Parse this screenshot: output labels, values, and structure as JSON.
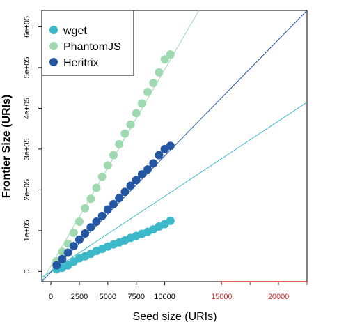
{
  "chart_data": {
    "type": "scatter",
    "xlabel": "Seed size (URIs)",
    "ylabel": "Frontier Size (URIs)",
    "xlim": [
      -800,
      22500
    ],
    "ylim": [
      -25000,
      640000
    ],
    "x_ticks": [
      0,
      2500,
      5000,
      7500,
      10000
    ],
    "x_ticks_red": [
      15000,
      20000
    ],
    "x_ticks_red_minor": [
      17500,
      22500
    ],
    "y_ticks": [
      0,
      100000,
      200000,
      300000,
      400000,
      500000,
      600000
    ],
    "y_tick_labels": [
      "0",
      "1e+05",
      "2e+05",
      "3e+05",
      "4e+05",
      "5e+05",
      "6e+05"
    ],
    "legend_position": "top-left",
    "series": [
      {
        "name": "wget",
        "color": "#3bb8c9",
        "x": [
          500,
          1000,
          1500,
          2000,
          2500,
          3000,
          3500,
          4000,
          4500,
          5000,
          5500,
          6000,
          6500,
          7000,
          7500,
          8000,
          8500,
          9000,
          9500,
          10000,
          10500
        ],
        "y": [
          5000,
          9000,
          15000,
          24000,
          32000,
          37000,
          43000,
          50000,
          55000,
          61000,
          66000,
          71000,
          76000,
          82000,
          87000,
          92000,
          97000,
          103000,
          110000,
          116000,
          124000
        ],
        "fit": [
          [
            -800,
            -15000
          ],
          [
            22500,
            415000
          ]
        ]
      },
      {
        "name": "PhantomJS",
        "color": "#9fd9b0",
        "x": [
          500,
          1000,
          1500,
          2000,
          2500,
          3000,
          3500,
          4000,
          4500,
          5000,
          5500,
          6000,
          6500,
          7000,
          7500,
          8000,
          8500,
          9000,
          9500,
          10000,
          10500
        ],
        "y": [
          25000,
          48000,
          68000,
          95000,
          122000,
          155000,
          178000,
          205000,
          232000,
          260000,
          285000,
          312000,
          338000,
          360000,
          388000,
          412000,
          440000,
          462000,
          488000,
          520000,
          532000
        ],
        "fit": [
          [
            -800,
            -25000
          ],
          [
            13000,
            640000
          ]
        ]
      },
      {
        "name": "Heritrix",
        "color": "#2457a3",
        "x": [
          500,
          1000,
          1500,
          2000,
          2500,
          3000,
          3500,
          4000,
          4500,
          5000,
          5500,
          6000,
          6500,
          7000,
          7500,
          8000,
          8500,
          9000,
          9500,
          10000,
          10500
        ],
        "y": [
          15000,
          30000,
          46000,
          62000,
          78000,
          93000,
          108000,
          122000,
          136000,
          152000,
          165000,
          180000,
          195000,
          210000,
          224000,
          238000,
          250000,
          265000,
          285000,
          300000,
          308000
        ],
        "fit": [
          [
            -800,
            -25000
          ],
          [
            22500,
            640000
          ]
        ]
      }
    ]
  }
}
